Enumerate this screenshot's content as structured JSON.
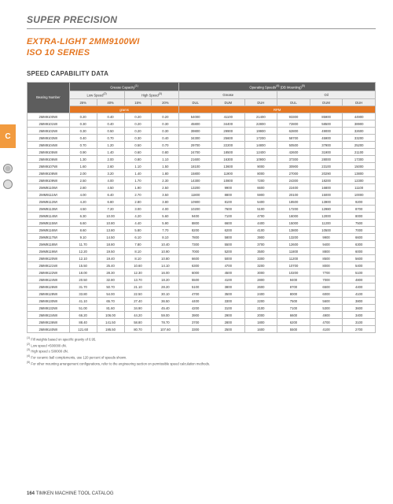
{
  "header": {
    "top": "SUPER PRECISION",
    "series_line1": "EXTRA-LIGHT 2MM9100WI",
    "series_line2": "ISO 10 SERIES",
    "section": "SPEED CAPABILITY DATA"
  },
  "side": {
    "tab": "C"
  },
  "table": {
    "group_grease": "Grease Capacity",
    "group_grease_sup": "(1)",
    "group_speeds": "Operating Speeds",
    "group_speeds_sup": "(4)",
    "group_speeds_note": " (DB Mounting)",
    "group_speeds_note_sup": "(5)",
    "bn_label": "Bearing Number",
    "low_speed": "Low Speed",
    "low_speed_sup": "(2)",
    "high_speed": "High Speed",
    "high_speed_sup": "(3)",
    "grease_label": "Grease",
    "oil_label": "Oil",
    "pcts": [
      "25%",
      "40%",
      "15%",
      "20%"
    ],
    "dul": "DUL",
    "dum": "DUM",
    "duh": "DUH",
    "unit_grams": "grams",
    "unit_rpm": "RPM",
    "rows": [
      {
        "bn": "2MM9100WI",
        "g": [
          "0.20",
          "0.40",
          "0.20",
          "0.20"
        ],
        "s": [
          "54000",
          "41100",
          "21400",
          "93300",
          "85900",
          "44900"
        ]
      },
      {
        "bn": "2MM9101WI",
        "g": [
          "0.30",
          "0.40",
          "0.20",
          "0.30"
        ],
        "s": [
          "45800",
          "34400",
          "22800",
          "72800",
          "58500",
          "38900"
        ]
      },
      {
        "bn": "2MM9102WI",
        "g": [
          "0.30",
          "0.50",
          "0.20",
          "0.30"
        ],
        "s": [
          "39800",
          "29900",
          "19900",
          "62800",
          "49000",
          "32600"
        ]
      },
      {
        "bn": "2MM9103WI",
        "g": [
          "0.40",
          "0.70",
          "0.30",
          "0.40"
        ],
        "s": [
          "34300",
          "25600",
          "17200",
          "58700",
          "45900",
          "33200"
        ]
      },
      {
        "bn": "2MM9104WI",
        "g": [
          "0.70",
          "1.20",
          "0.50",
          "0.70"
        ],
        "s": [
          "29700",
          "22200",
          "14800",
          "50500",
          "37900",
          "25200"
        ]
      },
      {
        "bn": "2MM9105WI",
        "g": [
          "0.90",
          "1.40",
          "0.60",
          "0.80"
        ],
        "s": [
          "24700",
          "18500",
          "12400",
          "42600",
          "31900",
          "21100"
        ]
      },
      {
        "bn": "2MM9106WI",
        "g": [
          "1.30",
          "2.00",
          "0.80",
          "1.10"
        ],
        "s": [
          "21600",
          "16300",
          "10900",
          "37300",
          "28000",
          "17300"
        ]
      },
      {
        "bn": "2MM9107WI",
        "g": [
          "1.60",
          "2.60",
          "1.10",
          "1.50"
        ],
        "s": [
          "18100",
          "13600",
          "9000",
          "30900",
          "23100",
          "15000"
        ]
      },
      {
        "bn": "2MM9108WI",
        "g": [
          "2.00",
          "3.20",
          "1.40",
          "1.80"
        ],
        "s": [
          "15800",
          "11900",
          "8000",
          "27000",
          "20290",
          "13800"
        ]
      },
      {
        "bn": "2MM9109WI",
        "g": [
          "2.50",
          "4.00",
          "1.70",
          "2.30"
        ],
        "s": [
          "14300",
          "10800",
          "7200",
          "24300",
          "18200",
          "12300"
        ]
      },
      {
        "bn": "2MM9110WI",
        "g": [
          "2.80",
          "4.50",
          "1.90",
          "2.50"
        ],
        "s": [
          "13200",
          "9900",
          "6600",
          "22400",
          "16800",
          "11100"
        ]
      },
      {
        "bn": "2MM9111WI",
        "g": [
          "4.00",
          "6.40",
          "2.70",
          "3.50"
        ],
        "s": [
          "11800",
          "8800",
          "5900",
          "20100",
          "15000",
          "10000"
        ]
      },
      {
        "bn": "2MM9112WI",
        "g": [
          "4.20",
          "6.80",
          "2.80",
          "3.80"
        ],
        "s": [
          "10900",
          "8100",
          "5400",
          "18500",
          "13900",
          "9200"
        ]
      },
      {
        "bn": "2MM9113WI",
        "g": [
          "4.50",
          "7.20",
          "3.00",
          "4.00"
        ],
        "s": [
          "10200",
          "7600",
          "5100",
          "17200",
          "12980",
          "8700"
        ]
      },
      {
        "bn": "2MM9114WI",
        "g": [
          "6.30",
          "10.00",
          "4.20",
          "5.60"
        ],
        "s": [
          "9400",
          "7100",
          "4700",
          "16000",
          "12000",
          "8000"
        ]
      },
      {
        "bn": "2MM9115WI",
        "g": [
          "6.60",
          "10.80",
          "4.40",
          "5.90"
        ],
        "s": [
          "8800",
          "6600",
          "4400",
          "15000",
          "11200",
          "7500"
        ]
      },
      {
        "bn": "2MM9116WI",
        "g": [
          "8.60",
          "13.80",
          "5.80",
          "7.70"
        ],
        "s": [
          "8200",
          "6200",
          "4100",
          "13800",
          "10500",
          "7000"
        ]
      },
      {
        "bn": "2MM9117WI",
        "g": [
          "9.10",
          "14.50",
          "6.10",
          "8.10"
        ],
        "s": [
          "7800",
          "5800",
          "3900",
          "13200",
          "9900",
          "6600"
        ]
      },
      {
        "bn": "2MM9118WI",
        "g": [
          "11.70",
          "18.80",
          "7.80",
          "10.40"
        ],
        "s": [
          "7300",
          "5500",
          "3700",
          "12600",
          "9400",
          "6300"
        ]
      },
      {
        "bn": "2MM9119WI",
        "g": [
          "12.20",
          "19.50",
          "8.10",
          "10.90"
        ],
        "s": [
          "7000",
          "5200",
          "3500",
          "11800",
          "8800",
          "6000"
        ]
      },
      {
        "bn": "2MM9120WI",
        "g": [
          "12.10",
          "19.40",
          "8.10",
          "10.80"
        ],
        "s": [
          "6600",
          "5000",
          "3300",
          "11200",
          "8500",
          "5600"
        ]
      },
      {
        "bn": "2MM9121WI",
        "g": [
          "15.50",
          "25.40",
          "10.60",
          "14.10"
        ],
        "s": [
          "6300",
          "4700",
          "3200",
          "10700",
          "8000",
          "5400"
        ]
      },
      {
        "bn": "2MM9122WI",
        "g": [
          "18.00",
          "28.30",
          "12.30",
          "16.00"
        ],
        "s": [
          "6000",
          "4500",
          "3000",
          "10200",
          "7700",
          "5100"
        ]
      },
      {
        "bn": "2MM9124WI",
        "g": [
          "20.50",
          "32.80",
          "13.70",
          "18.20"
        ],
        "s": [
          "5500",
          "4100",
          "2800",
          "9400",
          "7000",
          "4800"
        ]
      },
      {
        "bn": "2MM9126WI",
        "g": [
          "31.70",
          "50.70",
          "21.10",
          "28.20"
        ],
        "s": [
          "5100",
          "3800",
          "2600",
          "8700",
          "6500",
          "4400"
        ]
      },
      {
        "bn": "2MM9128WI",
        "g": [
          "33.80",
          "54.00",
          "22.50",
          "30.10"
        ],
        "s": [
          "4700",
          "3500",
          "2400",
          "8000",
          "6000",
          "4100"
        ]
      },
      {
        "bn": "2MM9130WI",
        "g": [
          "41.10",
          "65.70",
          "27.40",
          "36.50"
        ],
        "s": [
          "4400",
          "3300",
          "2200",
          "7500",
          "5600",
          "3800"
        ]
      },
      {
        "bn": "2MM9132WI",
        "g": [
          "51.00",
          "81.60",
          "34.90",
          "45.40"
        ],
        "s": [
          "4200",
          "3100",
          "2100",
          "7100",
          "5300",
          "3600"
        ]
      },
      {
        "bn": "2MM9134WI",
        "g": [
          "66.20",
          "106.00",
          "44.20",
          "59.00"
        ],
        "s": [
          "3900",
          "2900",
          "2000",
          "6600",
          "4900",
          "3400"
        ]
      },
      {
        "bn": "2MM9136WI",
        "g": [
          "88.40",
          "141.50",
          "58.80",
          "78.70"
        ],
        "s": [
          "3700",
          "2800",
          "1800",
          "6200",
          "4700",
          "3100"
        ]
      },
      {
        "bn": "2MM9140WI",
        "g": [
          "121.60",
          "195.50",
          "80.70",
          "107.60"
        ],
        "s": [
          "3300",
          "2500",
          "1600",
          "5500",
          "4100",
          "2700"
        ]
      }
    ]
  },
  "footnotes": [
    {
      "sup": "(1)",
      "text": " Fill weights based on specific gravity of 0.95."
    },
    {
      "sup": "(2)",
      "text": " Low speed <500000 dN."
    },
    {
      "sup": "(3)",
      "text": " High speed ≥ 500000 dN."
    },
    {
      "sup": "(4)",
      "text": " For ceramic ball complements, use 120 percent of speeds shown."
    },
    {
      "sup": "(5)",
      "text": " For other mounting arrangement configurations, refer to the engineering section on permissible speed calculation methods."
    }
  ],
  "footer": {
    "page": "164",
    "label": " TIMKEN MACHINE TOOL CATALOG"
  }
}
